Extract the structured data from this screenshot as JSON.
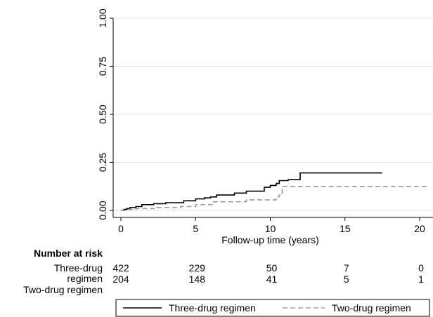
{
  "chart_data": {
    "type": "line",
    "title": "",
    "xlabel": "Follow-up time (years)",
    "ylabel": "",
    "xlim": [
      0,
      20
    ],
    "ylim": [
      0,
      1
    ],
    "xticks": [
      "0",
      "5",
      "10",
      "15",
      "20"
    ],
    "xtick_values": [
      0,
      5,
      10,
      15,
      20
    ],
    "yticks": [
      "0.00",
      "0.25",
      "0.50",
      "0.75",
      "1.00"
    ],
    "ytick_values": [
      0,
      0.25,
      0.5,
      0.75,
      1.0
    ],
    "grid": true,
    "legend_position": "bottom",
    "series": [
      {
        "name": "Three-drug regimen",
        "color": "#000000",
        "style": "solid",
        "x": [
          0,
          0.2,
          0.4,
          0.6,
          1.0,
          1.4,
          2.2,
          3.0,
          4.2,
          5.0,
          5.6,
          6.0,
          6.4,
          7.6,
          8.4,
          9.6,
          10.0,
          10.4,
          10.6,
          11.2,
          12.0,
          17.5
        ],
        "y": [
          0,
          0.005,
          0.01,
          0.015,
          0.02,
          0.03,
          0.035,
          0.04,
          0.05,
          0.06,
          0.065,
          0.07,
          0.08,
          0.09,
          0.1,
          0.12,
          0.13,
          0.14,
          0.155,
          0.16,
          0.195,
          0.195
        ]
      },
      {
        "name": "Two-drug regimen",
        "color": "#999999",
        "style": "dashed",
        "x": [
          0,
          0.4,
          1.0,
          2.4,
          4.0,
          5.0,
          6.2,
          8.4,
          10.4,
          10.6,
          10.8,
          20.6
        ],
        "y": [
          0,
          0.005,
          0.01,
          0.015,
          0.02,
          0.03,
          0.045,
          0.055,
          0.07,
          0.08,
          0.125,
          0.125
        ]
      }
    ]
  },
  "risk_table": {
    "title": "Number at risk",
    "rows": [
      {
        "label": "Three-drug\nregimen",
        "values": [
          "422",
          "229",
          "50",
          "7",
          "0"
        ]
      },
      {
        "label": "Two-drug regimen",
        "values": [
          "204",
          "148",
          "41",
          "5",
          "1"
        ]
      }
    ]
  },
  "colors": {
    "grid": "#e6e6e6",
    "axis": "#000000"
  }
}
